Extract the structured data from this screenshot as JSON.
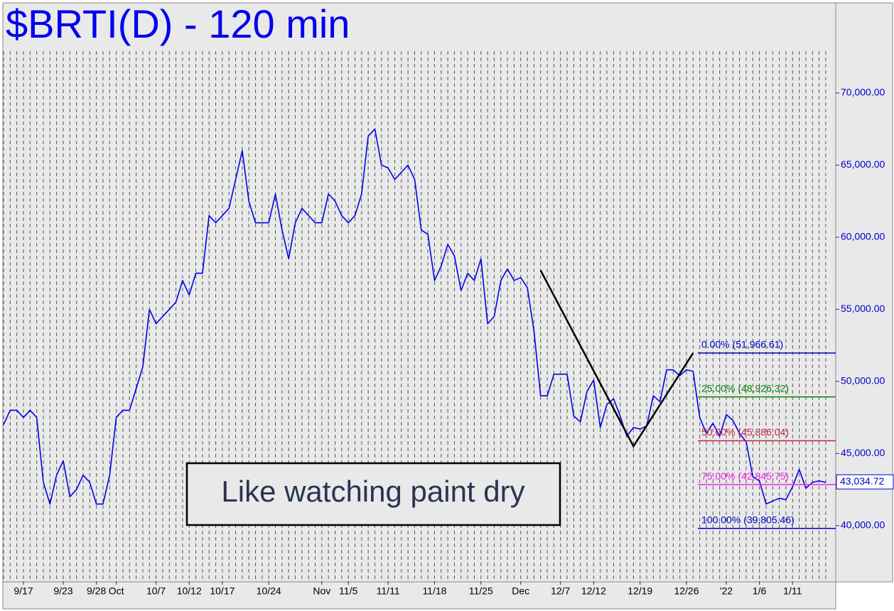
{
  "chart_data": {
    "type": "line",
    "title": "$BRTI(D) - 120 min",
    "color": "#0000ee",
    "grid": "x",
    "x": [
      "9/14",
      "9/15",
      "9/16",
      "9/17",
      "9/18",
      "9/19",
      "9/20",
      "9/21",
      "9/22",
      "9/23",
      "9/24",
      "9/25",
      "9/26",
      "9/27",
      "9/28",
      "9/29",
      "9/30",
      "10/1",
      "10/2",
      "10/3",
      "10/4",
      "10/5",
      "10/6",
      "10/7",
      "10/8",
      "10/9",
      "10/10",
      "10/11",
      "10/12",
      "10/13",
      "10/14",
      "10/15",
      "10/16",
      "10/17",
      "10/18",
      "10/19",
      "10/20",
      "10/21",
      "10/22",
      "10/23",
      "10/24",
      "10/25",
      "10/26",
      "10/27",
      "10/28",
      "10/29",
      "10/30",
      "10/31",
      "11/1",
      "11/2",
      "11/3",
      "11/4",
      "11/5",
      "11/6",
      "11/7",
      "11/8",
      "11/9",
      "11/10",
      "11/11",
      "11/12",
      "11/13",
      "11/14",
      "11/15",
      "11/16",
      "11/17",
      "11/18",
      "11/19",
      "11/20",
      "11/21",
      "11/22",
      "11/23",
      "11/24",
      "11/25",
      "11/26",
      "11/27",
      "11/28",
      "11/29",
      "11/30",
      "12/1",
      "12/2",
      "12/3",
      "12/4",
      "12/5",
      "12/6",
      "12/7",
      "12/8",
      "12/9",
      "12/10",
      "12/11",
      "12/12",
      "12/13",
      "12/14",
      "12/15",
      "12/16",
      "12/17",
      "12/18",
      "12/19",
      "12/20",
      "12/21",
      "12/22",
      "12/23",
      "12/24",
      "12/25",
      "12/26",
      "12/27",
      "12/28",
      "12/29",
      "12/30",
      "12/31",
      "1/1",
      "1/2",
      "1/3",
      "1/4",
      "1/5",
      "1/6",
      "1/7",
      "1/8",
      "1/9",
      "1/10",
      "1/11",
      "1/12",
      "1/13",
      "1/14",
      "1/15",
      "1/16"
    ],
    "values": [
      47000,
      48000,
      48000,
      47500,
      48000,
      47500,
      43000,
      41500,
      43500,
      44500,
      42000,
      42500,
      43500,
      43000,
      41500,
      41500,
      43500,
      47500,
      48000,
      48000,
      49500,
      51000,
      55000,
      54000,
      54500,
      55000,
      55500,
      57000,
      56000,
      57500,
      57500,
      61500,
      61000,
      61500,
      62000,
      64000,
      66000,
      62500,
      61000,
      61000,
      61000,
      63000,
      60500,
      58500,
      61000,
      62000,
      61500,
      61000,
      61000,
      63000,
      62500,
      61500,
      61000,
      61500,
      63000,
      67000,
      67500,
      65000,
      64800,
      64000,
      64500,
      65000,
      64000,
      60500,
      60200,
      57000,
      58000,
      59500,
      58700,
      56300,
      57500,
      57000,
      58500,
      54000,
      54500,
      57000,
      57800,
      57000,
      57200,
      56500,
      53500,
      49000,
      49000,
      50500,
      50500,
      50500,
      47600,
      47200,
      49300,
      50100,
      46800,
      48400,
      48800,
      47600,
      46200,
      46800,
      46700,
      46900,
      49000,
      48600,
      50800,
      50800,
      50400,
      50800,
      50700,
      47500,
      46400,
      47100,
      46200,
      47700,
      47300,
      46400,
      45800,
      43400,
      43100,
      41500,
      41700,
      41900,
      41800,
      42700,
      43900,
      42600,
      43000,
      43100,
      43000
    ],
    "ylim": [
      36150,
      76200
    ],
    "yticks": [
      {
        "value": 40000,
        "label": "40,000.00"
      },
      {
        "value": 45000,
        "label": "45,000.00"
      },
      {
        "value": 50000,
        "label": "50,000.00"
      },
      {
        "value": 55000,
        "label": "55,000.00"
      },
      {
        "value": 60000,
        "label": "60,000.00"
      },
      {
        "value": 65000,
        "label": "65,000.00"
      },
      {
        "value": 70000,
        "label": "70,000.00"
      }
    ],
    "xticks": [
      "9/17",
      "9/23",
      "9/28",
      {
        "value": "10/1",
        "label": "Oct"
      },
      "10/7",
      "10/12",
      "10/17",
      "10/24",
      {
        "value": "11/1",
        "label": "Nov"
      },
      "11/5",
      "11/11",
      "11/18",
      "11/25",
      {
        "value": "12/1",
        "label": "Dec"
      },
      "12/7",
      "12/12",
      "12/19",
      "12/26",
      {
        "value": "1/1",
        "label": "'22"
      },
      "1/6",
      "1/11"
    ],
    "overlay_line": {
      "x": [
        "12/4",
        "12/18",
        "12/27"
      ],
      "values": [
        57700,
        45500,
        51966.61
      ]
    },
    "fib_levels": [
      {
        "value": 51966.61,
        "label": "0.00% (51,966.61)",
        "color": "#0000cc"
      },
      {
        "value": 48926.32,
        "label": "25.00% (48,926.32)",
        "color": "#008800"
      },
      {
        "value": 45886.04,
        "label": "50.00% (45,886.04)",
        "color": "#cc2244"
      },
      {
        "value": 42845.75,
        "label": "75.00% (42,845.75)",
        "color": "#ee22ee"
      },
      {
        "value": 39805.46,
        "label": "100.00% (39,805.46)",
        "color": "#0000cc"
      }
    ],
    "last_price": {
      "value": 43034.72,
      "label": "43,034.72"
    },
    "annotation": "Like watching paint dry"
  }
}
